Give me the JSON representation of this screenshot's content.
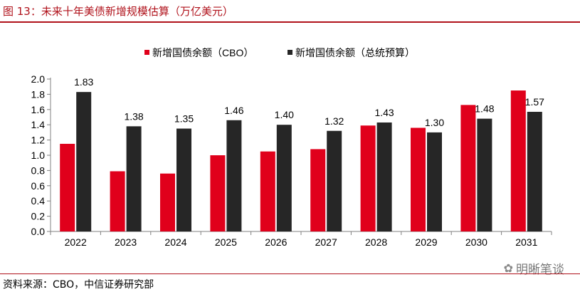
{
  "header": {
    "title": "图 13：未来十年美债新增规模估算（万亿美元）"
  },
  "footer": {
    "source": "资料来源：CBO，中信证券研究部",
    "watermark": "明晰笔谈"
  },
  "chart_data": {
    "type": "bar",
    "title": "",
    "categories": [
      "2022",
      "2023",
      "2024",
      "2025",
      "2026",
      "2027",
      "2028",
      "2029",
      "2030",
      "2031"
    ],
    "series": [
      {
        "name": "新增国债余额（CBO）",
        "color": "#e0001b",
        "values": [
          1.15,
          0.79,
          0.76,
          1.0,
          1.05,
          1.08,
          1.39,
          1.36,
          1.66,
          1.85
        ]
      },
      {
        "name": "新增国债余额（总统预算）",
        "color": "#262626",
        "values": [
          1.83,
          1.38,
          1.35,
          1.46,
          1.4,
          1.32,
          1.43,
          1.3,
          1.48,
          1.57
        ],
        "labels": [
          "1.83",
          "1.38",
          "1.35",
          "1.46",
          "1.40",
          "1.32",
          "1.43",
          "1.30",
          "1.48",
          "1.57"
        ]
      }
    ],
    "yticks": [
      "0.0",
      "0.2",
      "0.4",
      "0.6",
      "0.8",
      "1.0",
      "1.2",
      "1.4",
      "1.6",
      "1.8",
      "2.0"
    ],
    "ylim": [
      0,
      2.0
    ],
    "grid": false,
    "legend_position": "top"
  }
}
